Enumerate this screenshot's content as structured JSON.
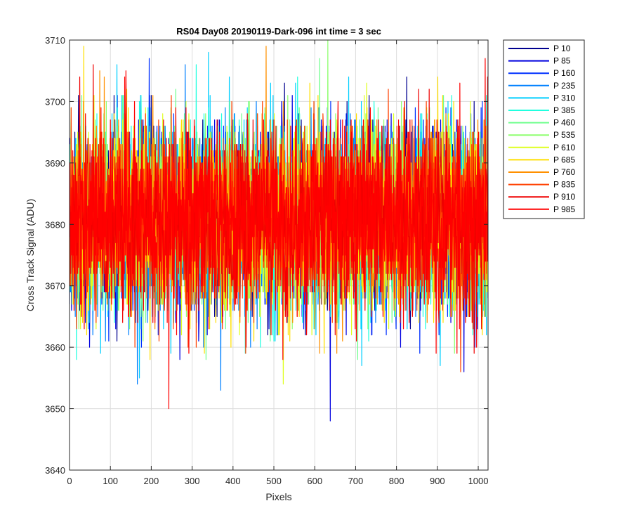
{
  "chart_data": {
    "type": "line",
    "title": "RS04 Day08 20190119-Dark-096 int time = 3 sec",
    "xlabel": "Pixels",
    "ylabel": "Cross Track Signal (ADU)",
    "xlim": [
      0,
      1024
    ],
    "ylim": [
      3640,
      3710
    ],
    "xticks": [
      0,
      100,
      200,
      300,
      400,
      500,
      600,
      700,
      800,
      900,
      1000
    ],
    "yticks": [
      3640,
      3650,
      3660,
      3670,
      3680,
      3690,
      3700,
      3710
    ],
    "grid": true,
    "legend_position": "outside-top-right",
    "noise_center": 3681,
    "noise_typical_range": [
      3663,
      3701
    ],
    "series": [
      {
        "name": "P 10",
        "color": "#00008f",
        "extremes": [
          {
            "x": 22,
            "y": 3701
          },
          {
            "x": 200,
            "y": 3701
          },
          {
            "x": 990,
            "y": 3700
          }
        ]
      },
      {
        "name": "P 85",
        "color": "#0000df",
        "extremes": [
          {
            "x": 49,
            "y": 3660
          },
          {
            "x": 638,
            "y": 3648
          },
          {
            "x": 965,
            "y": 3656
          },
          {
            "x": 270,
            "y": 3658
          }
        ]
      },
      {
        "name": "P 160",
        "color": "#0030ff",
        "extremes": [
          {
            "x": 195,
            "y": 3707
          },
          {
            "x": 857,
            "y": 3659
          },
          {
            "x": 1010,
            "y": 3700
          }
        ]
      },
      {
        "name": "P 235",
        "color": "#0080ff",
        "extremes": [
          {
            "x": 166,
            "y": 3654
          },
          {
            "x": 370,
            "y": 3653
          },
          {
            "x": 283,
            "y": 3706
          }
        ]
      },
      {
        "name": "P 310",
        "color": "#00cfff",
        "extremes": [
          {
            "x": 171,
            "y": 3655
          },
          {
            "x": 907,
            "y": 3657
          },
          {
            "x": 340,
            "y": 3708
          }
        ]
      },
      {
        "name": "P 385",
        "color": "#20ffdf",
        "extremes": [
          {
            "x": 310,
            "y": 3706
          },
          {
            "x": 430,
            "y": 3659
          },
          {
            "x": 1020,
            "y": 3701
          }
        ]
      },
      {
        "name": "P 460",
        "color": "#70ff8f",
        "extremes": [
          {
            "x": 334,
            "y": 3658
          },
          {
            "x": 612,
            "y": 3707
          },
          {
            "x": 705,
            "y": 3658
          }
        ]
      },
      {
        "name": "P 535",
        "color": "#8fff70",
        "extremes": [
          {
            "x": 632,
            "y": 3710
          },
          {
            "x": 90,
            "y": 3700
          },
          {
            "x": 180,
            "y": 3661
          }
        ]
      },
      {
        "name": "P 610",
        "color": "#dfff20",
        "extremes": [
          {
            "x": 523,
            "y": 3654
          },
          {
            "x": 140,
            "y": 3702
          },
          {
            "x": 690,
            "y": 3662
          }
        ]
      },
      {
        "name": "P 685",
        "color": "#ffdf00",
        "extremes": [
          {
            "x": 35,
            "y": 3709
          },
          {
            "x": 330,
            "y": 3659
          },
          {
            "x": 1010,
            "y": 3662
          }
        ]
      },
      {
        "name": "P 760",
        "color": "#ff9000",
        "extremes": [
          {
            "x": 481,
            "y": 3709
          },
          {
            "x": 612,
            "y": 3659
          },
          {
            "x": 85,
            "y": 3704
          }
        ]
      },
      {
        "name": "P 835",
        "color": "#ff4000",
        "extremes": [
          {
            "x": 957,
            "y": 3656
          },
          {
            "x": 780,
            "y": 3702
          },
          {
            "x": 160,
            "y": 3660
          }
        ]
      },
      {
        "name": "P 910",
        "color": "#ef0000",
        "extremes": [
          {
            "x": 58,
            "y": 3706
          },
          {
            "x": 990,
            "y": 3659
          },
          {
            "x": 880,
            "y": 3702
          }
        ]
      },
      {
        "name": "P 985",
        "color": "#ff0000",
        "extremes": [
          {
            "x": 243,
            "y": 3650
          },
          {
            "x": 1017,
            "y": 3707
          },
          {
            "x": 138,
            "y": 3705
          }
        ]
      }
    ]
  }
}
